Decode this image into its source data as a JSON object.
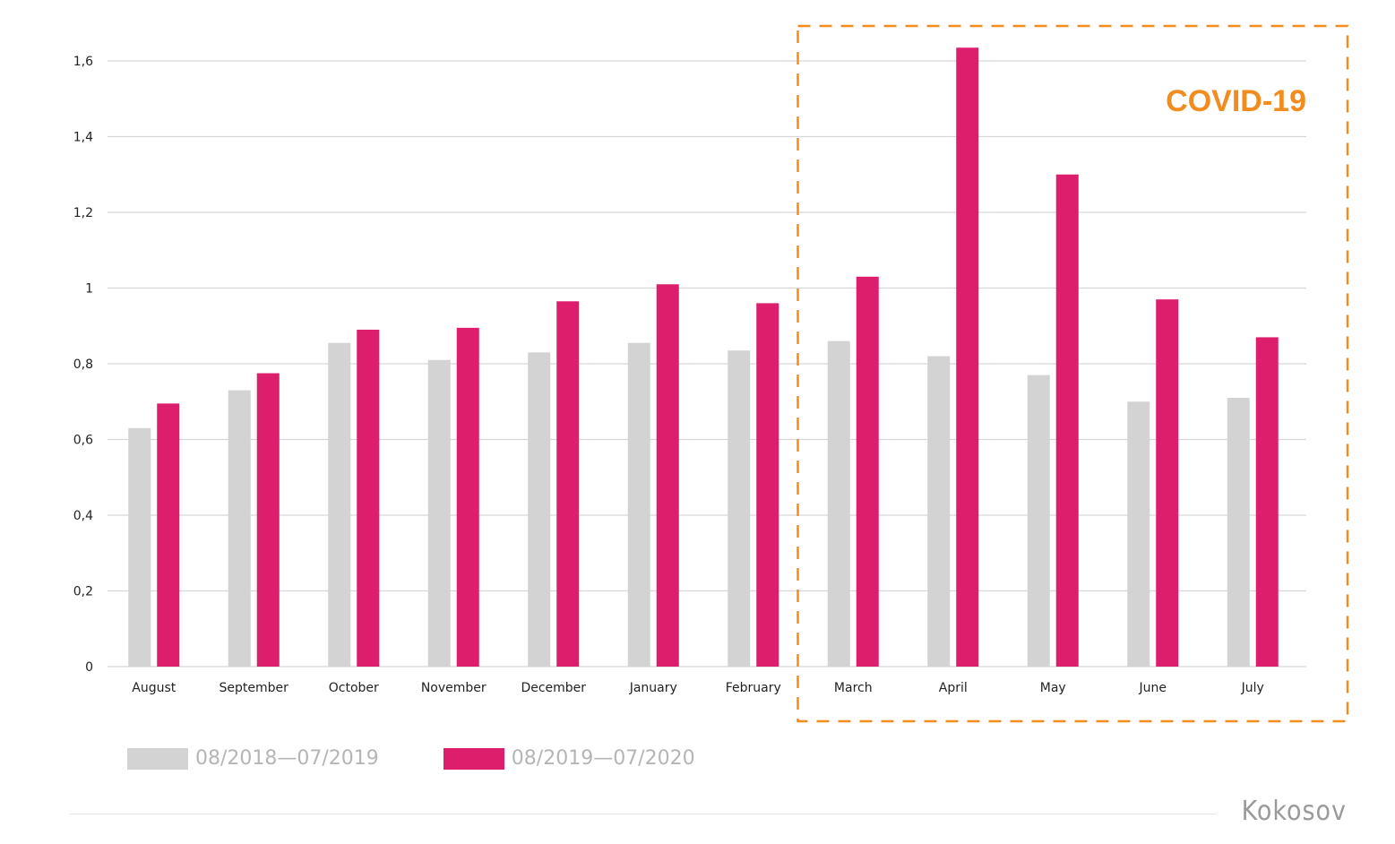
{
  "chart_data": {
    "type": "bar",
    "categories": [
      "August",
      "September",
      "October",
      "November",
      "December",
      "January",
      "February",
      "March",
      "April",
      "May",
      "June",
      "July"
    ],
    "series": [
      {
        "name": "08/2018—07/2019",
        "color": "#d3d3d3",
        "values": [
          0.63,
          0.73,
          0.855,
          0.81,
          0.83,
          0.855,
          0.835,
          0.86,
          0.82,
          0.77,
          0.7,
          0.71
        ]
      },
      {
        "name": "08/2019—07/2020",
        "color": "#dc1e6d",
        "values": [
          0.695,
          0.775,
          0.89,
          0.895,
          0.965,
          1.01,
          0.96,
          1.03,
          1.635,
          1.3,
          0.97,
          0.87
        ]
      }
    ],
    "yticks": [
      "0",
      "0,2",
      "0,4",
      "0,6",
      "0,8",
      "1",
      "1,2",
      "1,4",
      "1,6"
    ],
    "ytick_values": [
      0,
      0.2,
      0.4,
      0.6,
      0.8,
      1.0,
      1.2,
      1.4,
      1.6
    ],
    "ylim": [
      0,
      1.6
    ],
    "grid": true,
    "legend_position": "bottom-left",
    "annotation": {
      "text": "COVID-19",
      "color": "#f28c1e",
      "range_start": "March",
      "range_end": "July"
    }
  },
  "brand": {
    "text": "Kokosov"
  }
}
